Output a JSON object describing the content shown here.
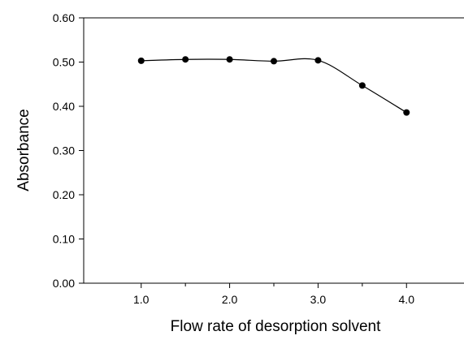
{
  "chart_data": {
    "type": "line",
    "title": "",
    "xlabel": "Flow rate of desorption solvent",
    "ylabel": "Absorbance",
    "x": [
      1.0,
      1.5,
      2.0,
      2.5,
      3.0,
      3.5,
      4.0
    ],
    "series": [
      {
        "values": [
          0.503,
          0.506,
          0.506,
          0.502,
          0.504,
          0.447,
          0.386
        ]
      }
    ],
    "xlim": [
      0.35,
      4.65
    ],
    "ylim": [
      0.0,
      0.6
    ],
    "x_ticks": [
      {
        "value": 1.0,
        "label": "1.0"
      },
      {
        "value": 2.0,
        "label": "2.0"
      },
      {
        "value": 3.0,
        "label": "3.0"
      },
      {
        "value": 4.0,
        "label": "4.0"
      }
    ],
    "x_minor_ticks": [
      1.5,
      2.5,
      3.5
    ],
    "y_ticks": [
      {
        "value": 0.0,
        "label": "0.00"
      },
      {
        "value": 0.1,
        "label": "0.10"
      },
      {
        "value": 0.2,
        "label": "0.20"
      },
      {
        "value": 0.3,
        "label": "0.30"
      },
      {
        "value": 0.4,
        "label": "0.40"
      },
      {
        "value": 0.5,
        "label": "0.50"
      },
      {
        "value": 0.6,
        "label": "0.60"
      }
    ],
    "grid": false,
    "legend": "none",
    "line_style": "smooth",
    "marker": "filled-circle",
    "colors": {
      "line": "#000000",
      "marker": "#000000",
      "axis": "#000000"
    }
  }
}
